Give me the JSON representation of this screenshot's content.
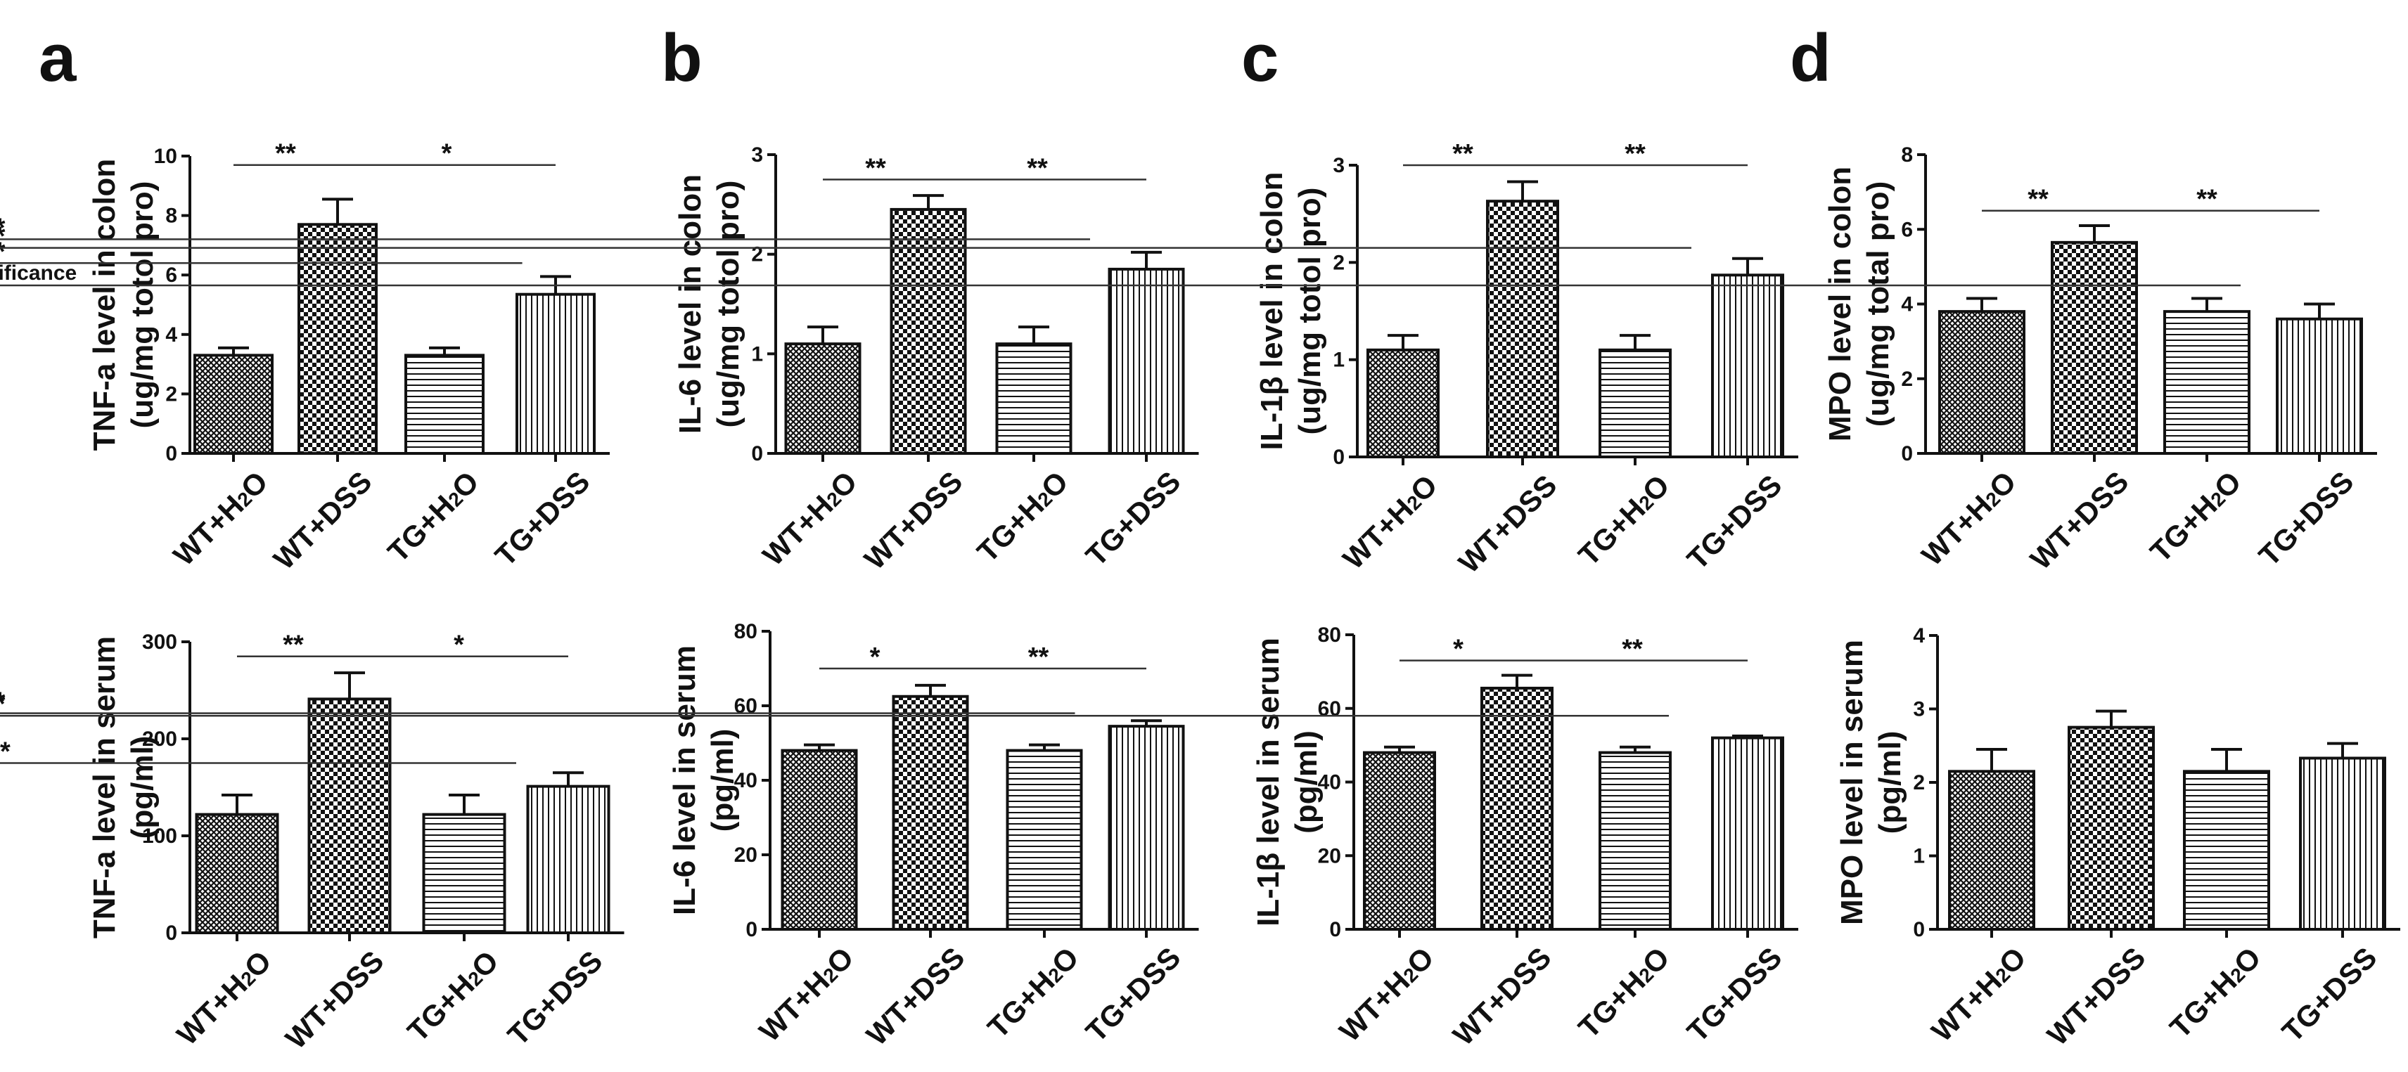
{
  "figure": {
    "panel_letters": [
      "a",
      "b",
      "c",
      "d"
    ]
  },
  "chart_data": [
    {
      "panel": "a",
      "row": "colon",
      "type": "bar",
      "ylabel_lines": [
        "TNF-a level in colon",
        "(ug/mg totol pro)"
      ],
      "ylim": [
        0,
        10
      ],
      "yticks": [
        0,
        2,
        4,
        6,
        8,
        10
      ],
      "categories": [
        {
          "text": "WT+H",
          "sub": "2",
          "tail": "O"
        },
        {
          "text": "WT+DSS"
        },
        {
          "text": "TG+H",
          "sub": "2",
          "tail": "O"
        },
        {
          "text": "TG+DSS"
        }
      ],
      "values": [
        3.3,
        7.7,
        3.3,
        5.35
      ],
      "errors": [
        0.25,
        0.85,
        0.25,
        0.6
      ],
      "patterns": [
        "crosshatch",
        "checker",
        "horizontal",
        "vertical"
      ],
      "significance": [
        {
          "from": 0,
          "to": 1,
          "label": "**",
          "y": 9.7
        },
        {
          "from": 1,
          "to": 3,
          "label": "*",
          "y": 9.7
        },
        {
          "from": 2.7,
          "to": 3.3,
          "label": "*",
          "y": 6.4
        }
      ]
    },
    {
      "panel": "b",
      "row": "colon",
      "type": "bar",
      "ylabel_lines": [
        "IL-6 level in colon",
        "(ug/mg totol pro)"
      ],
      "ylim": [
        0,
        3
      ],
      "yticks": [
        0,
        1,
        2,
        3
      ],
      "categories": [
        {
          "text": "WT+H",
          "sub": "2",
          "tail": "O"
        },
        {
          "text": "WT+DSS"
        },
        {
          "text": "TG+H",
          "sub": "2",
          "tail": "O"
        },
        {
          "text": "TG+DSS"
        }
      ],
      "values": [
        1.1,
        2.45,
        1.1,
        1.85
      ],
      "errors": [
        0.17,
        0.14,
        0.17,
        0.17
      ],
      "patterns": [
        "crosshatch",
        "checker",
        "horizontal",
        "vertical"
      ],
      "significance": [
        {
          "from": 0,
          "to": 1,
          "label": "**",
          "y": 2.75
        },
        {
          "from": 1,
          "to": 3,
          "label": "**",
          "y": 2.75
        },
        {
          "from": 2.5,
          "to": 3.3,
          "label": "*",
          "y": 2.15
        }
      ]
    },
    {
      "panel": "c",
      "row": "colon",
      "type": "bar",
      "ylabel_lines": [
        "IL-1β level in colon",
        "(ug/mg totol pro)"
      ],
      "ylim": [
        0,
        3
      ],
      "yticks": [
        0,
        1,
        2,
        3
      ],
      "categories": [
        {
          "text": "WT+H",
          "sub": "2",
          "tail": "O"
        },
        {
          "text": "WT+DSS"
        },
        {
          "text": "TG+H",
          "sub": "2",
          "tail": "O"
        },
        {
          "text": "TG+DSS"
        }
      ],
      "values": [
        1.1,
        2.63,
        1.1,
        1.87
      ],
      "errors": [
        0.15,
        0.2,
        0.15,
        0.17
      ],
      "patterns": [
        "crosshatch",
        "checker",
        "horizontal",
        "vertical"
      ],
      "significance": [
        {
          "from": 0,
          "to": 1,
          "label": "**",
          "y": 3.0
        },
        {
          "from": 1,
          "to": 3,
          "label": "**",
          "y": 3.0
        },
        {
          "from": 2.5,
          "to": 3.3,
          "label": "*",
          "y": 2.15
        }
      ]
    },
    {
      "panel": "d",
      "row": "colon",
      "type": "bar",
      "ylabel_lines": [
        "MPO level in colon",
        "(ug/mg total pro)"
      ],
      "ylim": [
        0,
        8
      ],
      "yticks": [
        0,
        2,
        4,
        6,
        8
      ],
      "categories": [
        {
          "text": "WT+H",
          "sub": "2",
          "tail": "O"
        },
        {
          "text": "WT+DSS"
        },
        {
          "text": "TG+H",
          "sub": "2",
          "tail": "O"
        },
        {
          "text": "TG+DSS"
        }
      ],
      "values": [
        3.8,
        5.65,
        3.8,
        3.6
      ],
      "errors": [
        0.35,
        0.45,
        0.35,
        0.4
      ],
      "patterns": [
        "crosshatch",
        "checker",
        "horizontal",
        "vertical"
      ],
      "significance": [
        {
          "from": 0,
          "to": 1,
          "label": "**",
          "y": 6.5
        },
        {
          "from": 1,
          "to": 3,
          "label": "**",
          "y": 6.5
        },
        {
          "from": 2.3,
          "to": 3.3,
          "label": "no significance",
          "y": 4.5
        }
      ]
    },
    {
      "panel": "a",
      "row": "serum",
      "type": "bar",
      "ylabel_lines": [
        "TNF-a level in serum",
        "(pg/ml)"
      ],
      "ylim": [
        0,
        300
      ],
      "yticks": [
        0,
        100,
        200,
        300
      ],
      "categories": [
        {
          "text": "WT+H",
          "sub": "2",
          "tail": "O"
        },
        {
          "text": "WT+DSS"
        },
        {
          "text": "TG+H",
          "sub": "2",
          "tail": "O"
        },
        {
          "text": "TG+DSS"
        }
      ],
      "values": [
        122,
        241,
        122,
        151
      ],
      "errors": [
        20,
        27,
        20,
        14
      ],
      "patterns": [
        "crosshatch",
        "checker",
        "horizontal",
        "vertical"
      ],
      "significance": [
        {
          "from": 0,
          "to": 1,
          "label": "**",
          "y": 285
        },
        {
          "from": 1,
          "to": 3,
          "label": "*",
          "y": 285
        },
        {
          "from": 2.5,
          "to": 3.3,
          "label": "**",
          "y": 175
        }
      ]
    },
    {
      "panel": "b",
      "row": "serum",
      "type": "bar",
      "ylabel_lines": [
        "IL-6 level in serum",
        "(pg/ml)"
      ],
      "ylim": [
        0,
        80
      ],
      "yticks": [
        0,
        20,
        40,
        60,
        80
      ],
      "categories": [
        {
          "text": "WT+H",
          "sub": "2",
          "tail": "O"
        },
        {
          "text": "WT+DSS"
        },
        {
          "text": "TG+H",
          "sub": "2",
          "tail": "O"
        },
        {
          "text": "TG+DSS"
        }
      ],
      "values": [
        48,
        62.5,
        48,
        54.5
      ],
      "errors": [
        1.5,
        3,
        1.5,
        1.5
      ],
      "patterns": [
        "crosshatch",
        "checker",
        "horizontal",
        "vertical"
      ],
      "significance": [
        {
          "from": 0,
          "to": 1,
          "label": "*",
          "y": 70
        },
        {
          "from": 1,
          "to": 3,
          "label": "**",
          "y": 70
        },
        {
          "from": 2.3,
          "to": 3.3,
          "label": "*",
          "y": 58
        }
      ]
    },
    {
      "panel": "c",
      "row": "serum",
      "type": "bar",
      "ylabel_lines": [
        "IL-1β level in serum",
        "(pg/ml)"
      ],
      "ylim": [
        0,
        80
      ],
      "yticks": [
        0,
        20,
        40,
        60,
        80
      ],
      "categories": [
        {
          "text": "WT+H",
          "sub": "2",
          "tail": "O"
        },
        {
          "text": "WT+DSS"
        },
        {
          "text": "TG+H",
          "sub": "2",
          "tail": "O"
        },
        {
          "text": "TG+DSS"
        }
      ],
      "values": [
        48,
        65.5,
        48,
        52
      ],
      "errors": [
        1.5,
        3.5,
        1.5,
        0.5
      ],
      "patterns": [
        "crosshatch",
        "checker",
        "horizontal",
        "vertical"
      ],
      "significance": [
        {
          "from": 0,
          "to": 1,
          "label": "*",
          "y": 73
        },
        {
          "from": 1,
          "to": 3,
          "label": "**",
          "y": 73
        },
        {
          "from": 2.3,
          "to": 3.3,
          "label": "*",
          "y": 58
        }
      ]
    },
    {
      "panel": "d",
      "row": "serum",
      "type": "bar",
      "ylabel_lines": [
        "MPO  level in serum",
        "(pg/ml)"
      ],
      "ylim": [
        0,
        4
      ],
      "yticks": [
        0,
        1,
        2,
        3,
        4
      ],
      "categories": [
        {
          "text": "WT+H",
          "sub": "2",
          "tail": "O"
        },
        {
          "text": "WT+DSS"
        },
        {
          "text": "TG+H",
          "sub": "2",
          "tail": "O"
        },
        {
          "text": "TG+DSS"
        }
      ],
      "values": [
        2.15,
        2.75,
        2.15,
        2.33
      ],
      "errors": [
        0.3,
        0.22,
        0.3,
        0.2
      ],
      "patterns": [
        "crosshatch",
        "checker",
        "horizontal",
        "vertical"
      ],
      "significance": []
    }
  ]
}
